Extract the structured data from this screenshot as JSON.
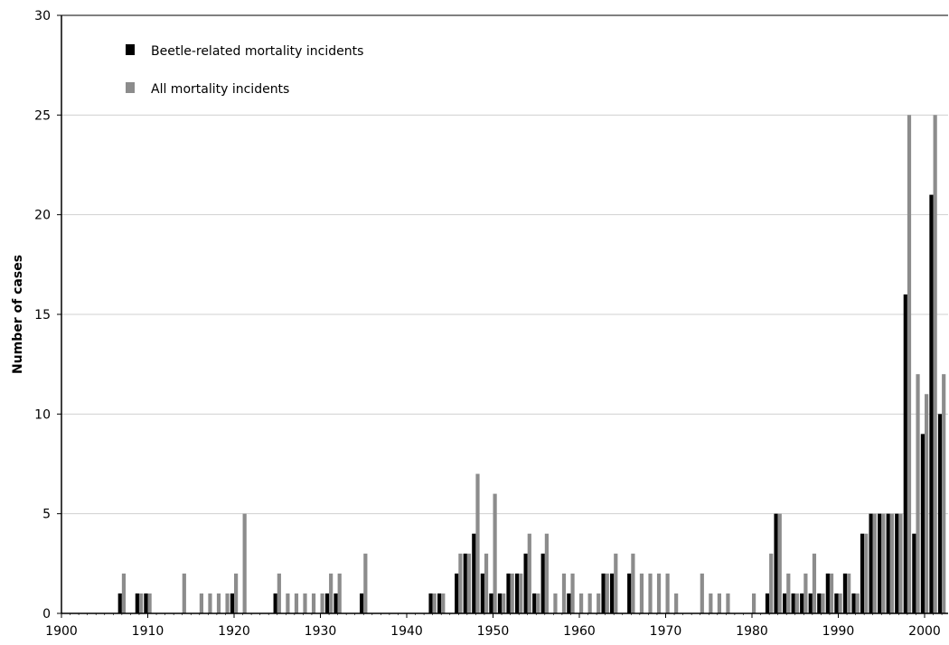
{
  "chart_data": {
    "type": "bar",
    "ylabel": "Number of cases",
    "xlabel": "",
    "title": "",
    "xlim": [
      1900,
      2002
    ],
    "ylim": [
      0,
      30
    ],
    "x_ticks": [
      1900,
      1910,
      1920,
      1930,
      1940,
      1950,
      1960,
      1970,
      1980,
      1990,
      2000
    ],
    "y_ticks": [
      0,
      5,
      10,
      15,
      20,
      25,
      30
    ],
    "grid": "horizontal",
    "legend_position": "top-left",
    "years": [
      1907,
      1909,
      1910,
      1914,
      1916,
      1917,
      1918,
      1919,
      1920,
      1921,
      1925,
      1926,
      1927,
      1928,
      1929,
      1930,
      1931,
      1932,
      1935,
      1943,
      1944,
      1946,
      1947,
      1948,
      1949,
      1950,
      1951,
      1952,
      1953,
      1954,
      1955,
      1956,
      1957,
      1958,
      1959,
      1960,
      1961,
      1962,
      1963,
      1964,
      1966,
      1967,
      1968,
      1969,
      1970,
      1971,
      1974,
      1975,
      1976,
      1977,
      1980,
      1982,
      1983,
      1984,
      1985,
      1986,
      1987,
      1988,
      1989,
      1990,
      1991,
      1992,
      1993,
      1994,
      1995,
      1996,
      1997,
      1998,
      1999,
      2000,
      2001,
      2002
    ],
    "series": [
      {
        "name": "Beetle-related mortality incidents",
        "color": "#000000",
        "values": [
          1,
          1,
          1,
          0,
          0,
          0,
          0,
          0,
          1,
          0,
          1,
          0,
          0,
          0,
          0,
          0,
          1,
          1,
          1,
          1,
          1,
          2,
          3,
          4,
          2,
          1,
          1,
          2,
          2,
          3,
          1,
          3,
          0,
          0,
          1,
          0,
          0,
          0,
          2,
          2,
          2,
          0,
          0,
          0,
          0,
          0,
          0,
          0,
          0,
          0,
          0,
          1,
          5,
          1,
          1,
          1,
          1,
          1,
          2,
          1,
          2,
          1,
          4,
          5,
          5,
          5,
          5,
          16,
          4,
          9,
          21,
          10
        ]
      },
      {
        "name": "All mortality incidents",
        "color": "#8c8c8c",
        "values": [
          2,
          1,
          1,
          2,
          1,
          1,
          1,
          1,
          2,
          5,
          2,
          1,
          1,
          1,
          1,
          1,
          2,
          2,
          3,
          1,
          1,
          3,
          3,
          7,
          3,
          6,
          1,
          2,
          2,
          4,
          1,
          4,
          1,
          2,
          2,
          1,
          1,
          1,
          2,
          3,
          3,
          2,
          2,
          2,
          2,
          1,
          2,
          1,
          1,
          1,
          1,
          3,
          5,
          2,
          1,
          2,
          3,
          1,
          2,
          1,
          2,
          1,
          4,
          5,
          5,
          5,
          5,
          25,
          12,
          11,
          25,
          12
        ]
      }
    ]
  },
  "legend": {
    "beetle_label": "Beetle-related mortality incidents",
    "all_label": "All mortality incidents"
  }
}
